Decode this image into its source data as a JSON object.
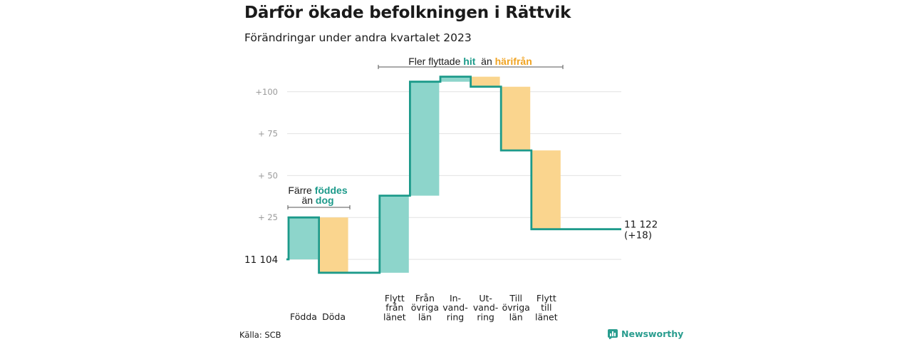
{
  "title": "Därför ökade befolkningen i Rättvik",
  "subtitle": "Förändringar under andra kvartalet 2023",
  "chart_data": {
    "type": "waterfall",
    "start_label": "11  104",
    "end_value_label": "11 122",
    "end_change_label": "(+18)",
    "baseline": 11104,
    "ylim": [
      -8,
      110
    ],
    "y_ticks": [
      {
        "value": 25,
        "label": "+  25"
      },
      {
        "value": 50,
        "label": "+  50"
      },
      {
        "value": 75,
        "label": "+  75"
      },
      {
        "value": 100,
        "label": "+100"
      }
    ],
    "steps": [
      {
        "label": [
          "Födda"
        ],
        "delta": 25
      },
      {
        "label": [
          "Döda"
        ],
        "delta": -33
      },
      {
        "label": [
          "Flytt",
          "från",
          "länet"
        ],
        "delta": 46
      },
      {
        "label": [
          "Från",
          "övriga",
          "län"
        ],
        "delta": 68
      },
      {
        "label": [
          "In-",
          "vand-",
          "ring"
        ],
        "delta": 3
      },
      {
        "label": [
          "Ut-",
          "vand-",
          "ring"
        ],
        "delta": -6
      },
      {
        "label": [
          "Till",
          "övriga",
          "län"
        ],
        "delta": -38
      },
      {
        "label": [
          "Flytt",
          "till",
          "länet"
        ],
        "delta": -47
      }
    ],
    "annotations": [
      {
        "parts": [
          "Färre ",
          "föddes"
        ],
        "parts2": [
          "än ",
          "dog"
        ]
      },
      {
        "parts": [
          "Fler flyttade ",
          "hit",
          "  än ",
          "härifrån"
        ]
      }
    ],
    "colors": {
      "increase": "#8dd5cb",
      "decrease": "#fad58e",
      "line": "#1c9a8a",
      "grid": "#e2e2e2",
      "axis": "#d0d0d0"
    }
  },
  "footer": {
    "source": "Källa: SCB",
    "brand": "Newsworthy",
    "brand_icon": "newsworthy-logo-icon"
  }
}
